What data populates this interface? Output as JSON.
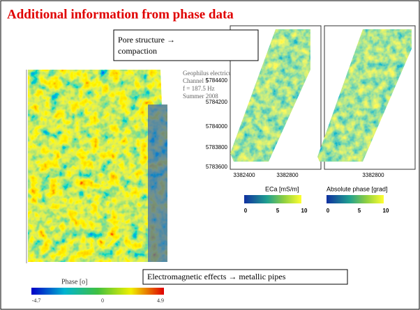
{
  "header": {
    "title": "Additional information from phase data"
  },
  "left_map": {
    "info": [
      "Geophilus electricus",
      "Channel 5",
      "f = 187.5 Hz",
      "Summer 2008"
    ],
    "colorbar": {
      "title": "Phase [o]",
      "ticks": [
        -4.7,
        0,
        4.9
      ]
    }
  },
  "right_maps": {
    "yticks": [
      5784400,
      5784200,
      5784000,
      5783800,
      5783600
    ],
    "left_xticks": [
      3382400,
      3382800
    ],
    "right_xticks": [
      3382800
    ],
    "eca_colorbar": {
      "title": "ECa [mS/m]",
      "ticks": [
        0,
        5,
        10
      ]
    },
    "phase_colorbar": {
      "title": "Absolute phase  [grad]",
      "ticks": [
        0,
        5,
        10
      ]
    }
  },
  "callouts": [
    "Pore structure → compaction",
    "Electromagnetic effects → metallic pipes"
  ]
}
